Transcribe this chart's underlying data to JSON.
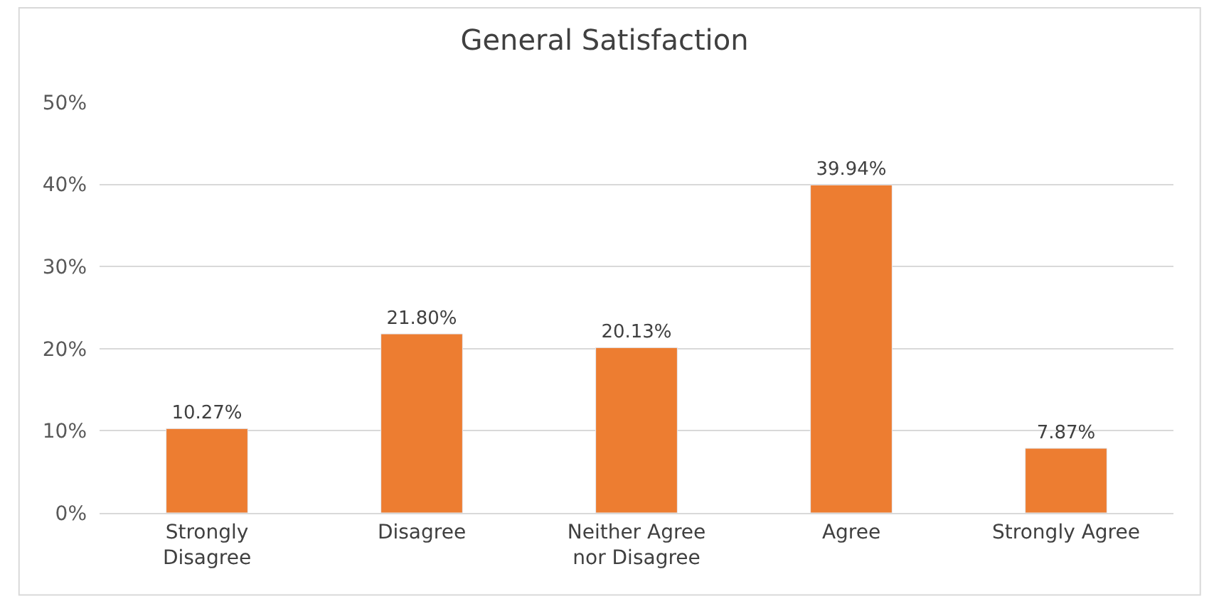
{
  "chart_data": {
    "type": "bar",
    "title": "General Satisfaction",
    "categories": [
      "Strongly Disagree",
      "Disagree",
      "Neither Agree nor Disagree",
      "Agree",
      "Strongly Agree"
    ],
    "values": [
      10.27,
      21.8,
      20.13,
      39.94,
      7.87
    ],
    "value_labels": [
      "10.27%",
      "21.80%",
      "20.13%",
      "39.94%",
      "7.87%"
    ],
    "color": "#ed7d31",
    "ylim": [
      0,
      50
    ],
    "yticks": [
      {
        "value": 0,
        "label": "0%"
      },
      {
        "value": 10,
        "label": "10%"
      },
      {
        "value": 20,
        "label": "20%"
      },
      {
        "value": 30,
        "label": "30%"
      },
      {
        "value": 40,
        "label": "40%"
      },
      {
        "value": 50,
        "label": "50%"
      }
    ],
    "grid": "y",
    "legend": false
  }
}
